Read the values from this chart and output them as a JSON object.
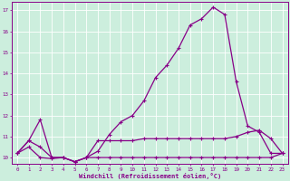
{
  "xlabel": "Windchill (Refroidissement éolien,°C)",
  "background_color": "#cceedd",
  "grid_color": "#aaddcc",
  "line_color": "#880088",
  "x_values": [
    0,
    1,
    2,
    3,
    4,
    5,
    6,
    7,
    8,
    9,
    10,
    11,
    12,
    13,
    14,
    15,
    16,
    17,
    18,
    19,
    20,
    21,
    22,
    23
  ],
  "line_peak": [
    10.2,
    10.8,
    11.8,
    10.0,
    10.0,
    9.8,
    10.0,
    10.3,
    11.1,
    11.7,
    12.0,
    12.7,
    13.8,
    14.4,
    15.2,
    16.3,
    16.6,
    17.15,
    16.8,
    13.6,
    11.5,
    11.2,
    10.2,
    10.2
  ],
  "line_mid": [
    10.2,
    10.8,
    10.5,
    10.0,
    10.0,
    9.8,
    10.0,
    10.8,
    10.8,
    10.8,
    10.8,
    10.9,
    10.9,
    10.9,
    10.9,
    10.9,
    10.9,
    10.9,
    10.9,
    11.0,
    11.2,
    11.3,
    10.9,
    10.2
  ],
  "line_low": [
    10.2,
    10.5,
    10.0,
    9.95,
    10.0,
    9.8,
    10.0,
    10.0,
    10.0,
    10.0,
    10.0,
    10.0,
    10.0,
    10.0,
    10.0,
    10.0,
    10.0,
    10.0,
    10.0,
    10.0,
    10.0,
    10.0,
    10.0,
    10.2
  ],
  "ylim": [
    9.7,
    17.4
  ],
  "yticks": [
    10,
    11,
    12,
    13,
    14,
    15,
    16,
    17
  ],
  "xlim": [
    -0.5,
    23.5
  ],
  "xticks": [
    0,
    1,
    2,
    3,
    4,
    5,
    6,
    7,
    8,
    9,
    10,
    11,
    12,
    13,
    14,
    15,
    16,
    17,
    18,
    19,
    20,
    21,
    22,
    23
  ]
}
